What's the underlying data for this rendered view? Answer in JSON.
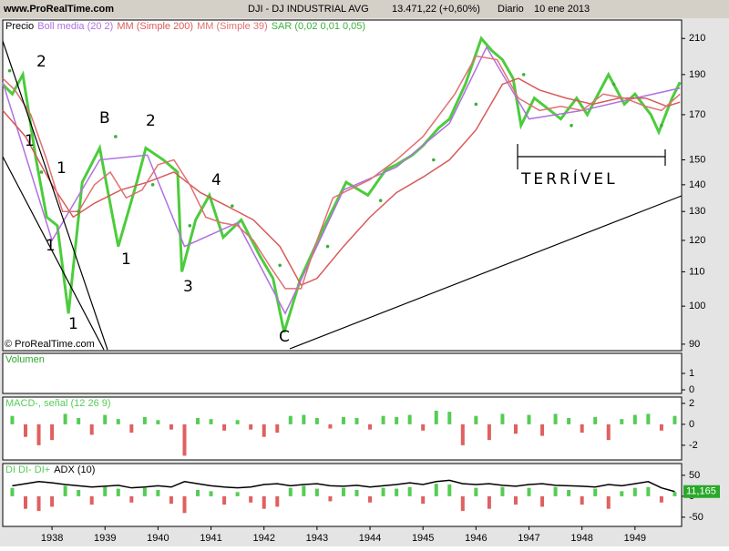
{
  "header": {
    "site": "www.ProRealTime.com",
    "symbol": "DJI - DJ INDUSTRIAL AVG",
    "quote": "13.471,22 (+0,60%)",
    "period": "Diario",
    "date": "10 ene 2013"
  },
  "chart_data": [
    {
      "type": "line",
      "log_scale": true,
      "xlim": [
        1937.07,
        1949.88
      ],
      "ylim": [
        88.4,
        221
      ],
      "yticks": [
        90,
        100,
        110,
        120,
        130,
        140,
        150,
        170,
        190,
        210
      ],
      "annotations": [
        "2",
        "1",
        "1",
        "1",
        "1",
        "B",
        "1",
        "2",
        "4",
        "3",
        "C",
        "TERRÍVEL",
        "© ProRealTime.com"
      ],
      "series": [
        {
          "name": "Precio",
          "type": "line",
          "color": "#4ccc3c",
          "x": [
            1937.07,
            1937.25,
            1937.45,
            1937.7,
            1937.9,
            1938.1,
            1938.31,
            1938.57,
            1938.9,
            1939.25,
            1939.6,
            1939.77,
            1940.1,
            1940.37,
            1940.45,
            1940.71,
            1940.97,
            1941.23,
            1941.57,
            1941.92,
            1942.17,
            1942.38,
            1942.69,
            1943.12,
            1943.55,
            1943.96,
            1944.3,
            1944.5,
            1944.8,
            1945.0,
            1945.3,
            1945.5,
            1945.8,
            1946.1,
            1946.3,
            1946.5,
            1946.7,
            1946.85,
            1947.1,
            1947.4,
            1947.6,
            1947.9,
            1948.1,
            1948.5,
            1948.8,
            1949.0,
            1949.3,
            1949.45,
            1949.7,
            1949.85
          ],
          "values": [
            185,
            180,
            190,
            150,
            128,
            125,
            98,
            141,
            155,
            118,
            141,
            155,
            150,
            145,
            110,
            127,
            136,
            121,
            127,
            115,
            108,
            93,
            108,
            124,
            141,
            136,
            146,
            148,
            152,
            156,
            164,
            168,
            185,
            210,
            203,
            198,
            188,
            165,
            178,
            172,
            168,
            178,
            170,
            190,
            175,
            180,
            170,
            162,
            178,
            186
          ]
        },
        {
          "name": "Boll media (20 2)",
          "type": "line",
          "color": "#b070e0",
          "x": [
            1937.07,
            1938.0,
            1938.9,
            1939.8,
            1940.5,
            1941.5,
            1942.4,
            1943.5,
            1944.5,
            1945.5,
            1946.2,
            1947.0,
            1948.0,
            1949.0,
            1949.85
          ],
          "values": [
            186,
            120,
            150,
            152,
            118,
            126,
            98,
            138,
            147,
            166,
            205,
            168,
            172,
            178,
            183
          ]
        },
        {
          "name": "MM (Simple 200)",
          "type": "line",
          "color": "#d85a5a",
          "x": [
            1937.07,
            1937.5,
            1938.0,
            1938.4,
            1938.8,
            1939.3,
            1939.8,
            1940.3,
            1940.8,
            1941.3,
            1941.8,
            1942.3,
            1942.7,
            1943.0,
            1943.5,
            1944.0,
            1944.5,
            1945.0,
            1945.5,
            1946.0,
            1946.5,
            1946.8,
            1947.2,
            1947.7,
            1948.2,
            1948.7,
            1949.2,
            1949.6,
            1949.85
          ],
          "values": [
            172,
            160,
            140,
            128,
            133,
            138,
            141,
            145,
            137,
            132,
            127,
            118,
            106,
            108,
            118,
            128,
            137,
            143,
            150,
            163,
            185,
            188,
            182,
            178,
            175,
            178,
            178,
            174,
            176
          ]
        },
        {
          "name": "MM (Simple 39)",
          "type": "line",
          "color": "#e07070",
          "x": [
            1937.07,
            1937.3,
            1937.6,
            1937.9,
            1938.2,
            1938.5,
            1938.8,
            1939.1,
            1939.4,
            1939.7,
            1940.0,
            1940.3,
            1940.6,
            1940.9,
            1941.2,
            1941.5,
            1941.8,
            1942.1,
            1942.4,
            1942.7,
            1943.0,
            1943.3,
            1943.6,
            1944.0,
            1944.5,
            1945.0,
            1945.6,
            1946.0,
            1946.4,
            1946.8,
            1947.2,
            1947.6,
            1948.0,
            1948.4,
            1948.8,
            1949.2,
            1949.5,
            1949.85
          ],
          "values": [
            188,
            182,
            170,
            150,
            130,
            130,
            140,
            145,
            135,
            138,
            148,
            150,
            140,
            128,
            126,
            125,
            120,
            112,
            105,
            105,
            120,
            135,
            138,
            142,
            150,
            160,
            180,
            200,
            198,
            178,
            172,
            174,
            172,
            180,
            178,
            174,
            172,
            180
          ]
        },
        {
          "name": "SAR (0,02 0,01 0,05)",
          "type": "scatter",
          "color": "#3cb03c",
          "x": [
            1937.2,
            1937.8,
            1938.5,
            1939.2,
            1939.9,
            1940.6,
            1941.4,
            1942.3,
            1943.2,
            1944.2,
            1945.2,
            1946.0,
            1946.9,
            1947.8,
            1948.6,
            1949.5
          ],
          "values": [
            192,
            145,
            130,
            160,
            140,
            125,
            132,
            112,
            118,
            134,
            150,
            175,
            190,
            165,
            185,
            165
          ]
        }
      ]
    },
    {
      "type": "line",
      "title": "Volumen",
      "title_color": "#2aa82a",
      "xlim": [
        1937.07,
        1949.88
      ],
      "ylim": [
        -0.22,
        2.22
      ],
      "yticks": [
        0,
        1
      ],
      "series": []
    },
    {
      "type": "bar",
      "xlim": [
        1937.07,
        1949.88
      ],
      "ylim": [
        -3.4,
        2.6
      ],
      "yticks": [
        -2,
        0,
        2
      ],
      "series": [
        {
          "name": "MACD-, señal (12 26 9)",
          "type": "bar",
          "color": "#55cc55",
          "neg_color": "#e06060",
          "x": [
            1937.25,
            1937.5,
            1937.75,
            1938.0,
            1938.25,
            1938.5,
            1938.75,
            1939.0,
            1939.25,
            1939.5,
            1939.75,
            1940.0,
            1940.25,
            1940.5,
            1940.75,
            1941.0,
            1941.25,
            1941.5,
            1941.75,
            1942.0,
            1942.25,
            1942.5,
            1942.75,
            1943.0,
            1943.25,
            1943.5,
            1943.75,
            1944.0,
            1944.25,
            1944.5,
            1944.75,
            1945.0,
            1945.25,
            1945.5,
            1945.75,
            1946.0,
            1946.25,
            1946.5,
            1946.75,
            1947.0,
            1947.25,
            1947.5,
            1947.75,
            1948.0,
            1948.25,
            1948.5,
            1948.75,
            1949.0,
            1949.25,
            1949.5,
            1949.75
          ],
          "values": [
            0.8,
            -1.2,
            -2.0,
            -1.5,
            1.0,
            0.6,
            -1.0,
            0.9,
            0.5,
            -0.8,
            0.7,
            0.4,
            -0.5,
            -3.0,
            0.6,
            0.5,
            -0.6,
            0.4,
            -0.5,
            -1.2,
            -0.8,
            0.8,
            0.9,
            0.6,
            -0.4,
            0.7,
            0.6,
            -0.5,
            0.8,
            0.7,
            0.9,
            -0.6,
            1.3,
            1.2,
            -2.0,
            0.8,
            -1.5,
            1.0,
            -0.9,
            0.9,
            -1.1,
            1.0,
            0.6,
            -0.8,
            0.7,
            -1.5,
            0.5,
            0.9,
            1.0,
            -0.6,
            0.8
          ]
        }
      ]
    },
    {
      "type": "bar",
      "xlim": [
        1937.07,
        1949.88
      ],
      "ylim": [
        -72,
        78
      ],
      "yticks": [
        -50,
        0,
        50
      ],
      "xticks": [
        1938,
        1939,
        1940,
        1941,
        1942,
        1943,
        1944,
        1945,
        1946,
        1947,
        1948,
        1949
      ],
      "series": [
        {
          "name": "DI DI- DI+",
          "type": "bar",
          "color": "#55cc55",
          "neg_color": "#e06060",
          "x": [
            1937.25,
            1937.5,
            1937.75,
            1938.0,
            1938.25,
            1938.5,
            1938.75,
            1939.0,
            1939.25,
            1939.5,
            1939.75,
            1940.0,
            1940.25,
            1940.5,
            1940.75,
            1941.0,
            1941.25,
            1941.5,
            1941.75,
            1942.0,
            1942.25,
            1942.5,
            1942.75,
            1943.0,
            1943.25,
            1943.5,
            1943.75,
            1944.0,
            1944.25,
            1944.5,
            1944.75,
            1945.0,
            1945.25,
            1945.5,
            1945.75,
            1946.0,
            1946.25,
            1946.5,
            1946.75,
            1947.0,
            1947.25,
            1947.5,
            1947.75,
            1948.0,
            1948.25,
            1948.5,
            1948.75,
            1949.0,
            1949.25,
            1949.5,
            1949.75
          ],
          "values": [
            20,
            -30,
            -35,
            -25,
            25,
            15,
            -20,
            22,
            18,
            -15,
            20,
            15,
            -18,
            -40,
            15,
            12,
            -20,
            10,
            -15,
            -30,
            -25,
            20,
            25,
            18,
            -12,
            20,
            15,
            -15,
            20,
            18,
            22,
            -18,
            30,
            28,
            -35,
            20,
            -30,
            22,
            -20,
            20,
            -25,
            22,
            15,
            -20,
            18,
            -30,
            12,
            20,
            22,
            -15,
            10
          ]
        },
        {
          "name": "ADX (10)",
          "type": "line",
          "color": "#000000",
          "label_color": "#2aa82a",
          "x": [
            1937.25,
            1937.5,
            1937.75,
            1938.0,
            1938.25,
            1938.5,
            1938.75,
            1939.0,
            1939.25,
            1939.5,
            1939.75,
            1940.0,
            1940.25,
            1940.5,
            1940.75,
            1941.0,
            1941.25,
            1941.5,
            1941.75,
            1942.0,
            1942.25,
            1942.5,
            1942.75,
            1943.0,
            1943.25,
            1943.5,
            1943.75,
            1944.0,
            1944.25,
            1944.5,
            1944.75,
            1945.0,
            1945.25,
            1945.5,
            1945.75,
            1946.0,
            1946.25,
            1946.5,
            1946.75,
            1947.0,
            1947.25,
            1947.5,
            1947.75,
            1948.0,
            1948.25,
            1948.5,
            1948.75,
            1949.0,
            1949.25,
            1949.5,
            1949.75
          ],
          "values": [
            25,
            30,
            35,
            32,
            28,
            25,
            22,
            24,
            26,
            20,
            22,
            25,
            22,
            35,
            30,
            25,
            22,
            20,
            22,
            28,
            30,
            25,
            28,
            30,
            25,
            24,
            26,
            22,
            25,
            28,
            32,
            28,
            35,
            38,
            30,
            28,
            30,
            26,
            24,
            28,
            30,
            26,
            25,
            24,
            22,
            28,
            25,
            30,
            35,
            20,
            11.165
          ],
          "value_labels": [
            null,
            null,
            null,
            null,
            null,
            null,
            null,
            null,
            null,
            null,
            null,
            null,
            null,
            null,
            null,
            null,
            null,
            null,
            null,
            null,
            null,
            null,
            null,
            null,
            null,
            null,
            null,
            null,
            null,
            null,
            null,
            null,
            null,
            null,
            null,
            null,
            null,
            null,
            null,
            null,
            null,
            null,
            null,
            null,
            null,
            null,
            null,
            null,
            null,
            null,
            "11,165"
          ]
        }
      ]
    }
  ]
}
